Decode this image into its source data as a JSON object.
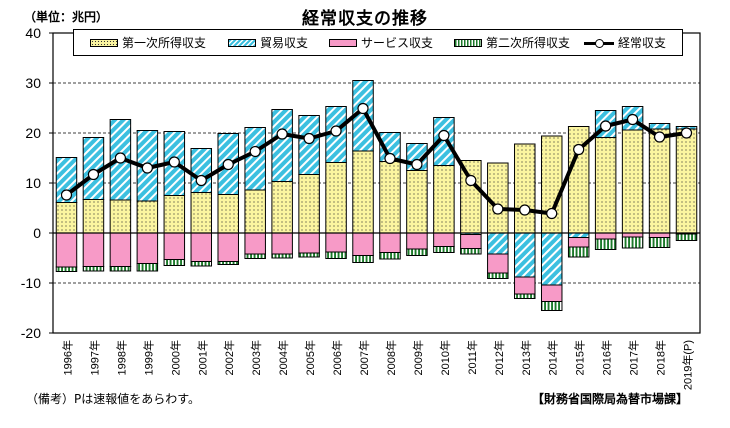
{
  "chart_data": {
    "type": "bar",
    "stacked": true,
    "title": "経常収支の推移",
    "unit_label": "（単位：兆円）",
    "xlabel": "",
    "ylabel": "",
    "ylim": [
      -20,
      40
    ],
    "yticks": [
      40,
      30,
      20,
      10,
      0,
      -10,
      -20
    ],
    "grid": "dashed horizontal at 30, 20, 10, -10",
    "legend_position": "top",
    "categories": [
      "1996年",
      "1997年",
      "1998年",
      "1999年",
      "2000年",
      "2001年",
      "2002年",
      "2003年",
      "2004年",
      "2005年",
      "2006年",
      "2007年",
      "2008年",
      "2009年",
      "2010年",
      "2011年",
      "2012年",
      "2013年",
      "2014年",
      "2015年",
      "2016年",
      "2017年",
      "2018年",
      "2019年(P)"
    ],
    "series": [
      {
        "name": "第一次所得収支",
        "kind": "bar",
        "color": "#fbf5a0",
        "values": [
          6.1,
          6.7,
          6.6,
          6.4,
          7.5,
          8.1,
          7.7,
          8.6,
          10.3,
          11.7,
          14.1,
          16.4,
          14.3,
          12.5,
          13.5,
          14.5,
          14.0,
          17.8,
          19.4,
          21.3,
          19.1,
          20.6,
          20.8,
          20.8
        ]
      },
      {
        "name": "貿易収支",
        "kind": "bar",
        "color": "#3cc0e0",
        "values": [
          9.0,
          12.4,
          16.1,
          14.1,
          12.8,
          8.8,
          12.2,
          12.5,
          14.4,
          11.8,
          11.2,
          14.1,
          5.8,
          5.4,
          9.6,
          -0.3,
          -4.2,
          -8.8,
          -10.4,
          -0.9,
          5.4,
          4.7,
          1.1,
          0.5
        ]
      },
      {
        "name": "サービス収支",
        "kind": "bar",
        "color": "#f79ac7",
        "values": [
          -6.8,
          -6.7,
          -6.7,
          -6.1,
          -5.3,
          -5.7,
          -5.7,
          -4.2,
          -4.2,
          -4.0,
          -3.8,
          -4.5,
          -3.9,
          -3.2,
          -2.7,
          -2.8,
          -3.8,
          -3.4,
          -3.3,
          -1.9,
          -1.2,
          -0.8,
          -0.9,
          -0.2
        ]
      },
      {
        "name": "第二次所得収支",
        "kind": "bar",
        "color": "#1c7a2a",
        "values": [
          -0.9,
          -0.9,
          -0.9,
          -1.5,
          -1.2,
          -0.9,
          -0.6,
          -0.9,
          -0.8,
          -0.8,
          -1.3,
          -1.4,
          -1.3,
          -1.3,
          -1.2,
          -1.1,
          -1.1,
          -0.9,
          -1.8,
          -2.0,
          -2.1,
          -2.2,
          -2.0,
          -1.3
        ]
      },
      {
        "name": "経常収支",
        "kind": "line",
        "color": "#000000",
        "values": [
          7.6,
          11.7,
          15.0,
          13.0,
          14.2,
          10.5,
          13.7,
          16.3,
          19.8,
          18.9,
          20.4,
          24.9,
          14.9,
          13.7,
          19.5,
          10.5,
          4.8,
          4.6,
          3.9,
          16.7,
          21.4,
          22.7,
          19.2,
          20.0
        ]
      }
    ]
  },
  "footer": {
    "note": "（備考）Pは速報値をあらわす。",
    "source": "【財務省国際局為替市場課】"
  }
}
